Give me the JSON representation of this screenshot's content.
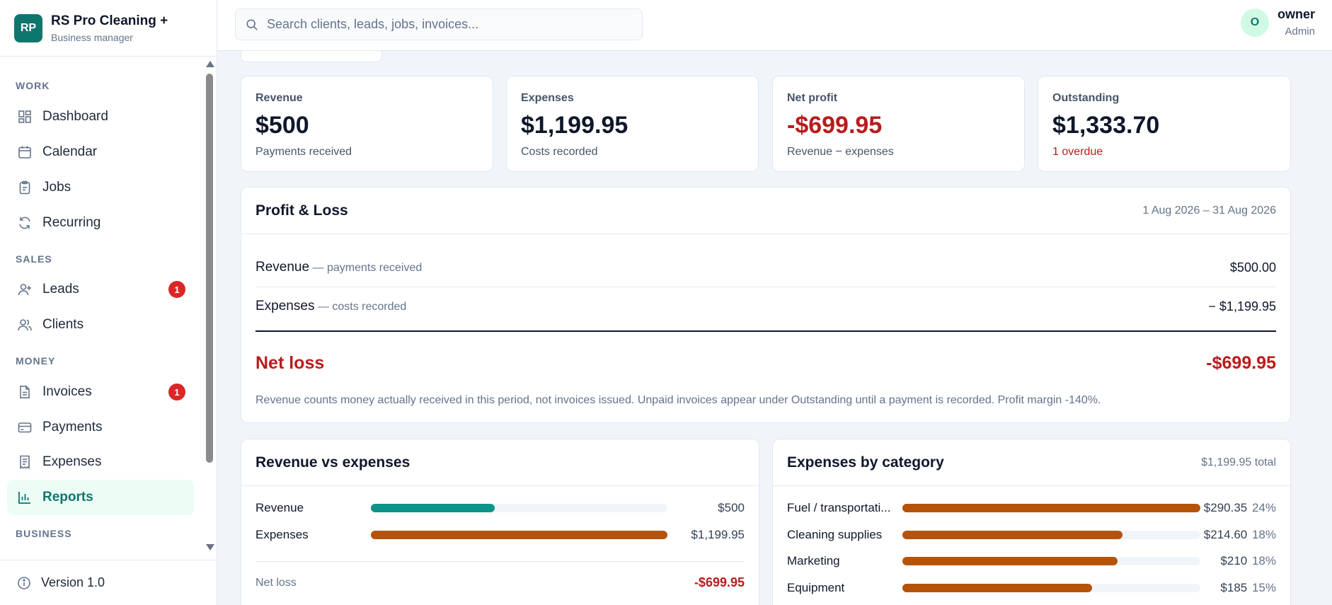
{
  "brand": {
    "logo": "RP",
    "name": "RS Pro Cleaning +",
    "subtitle": "Business manager"
  },
  "search": {
    "placeholder": "Search clients, leads, jobs, invoices..."
  },
  "user": {
    "initial": "O",
    "name": "owner",
    "role": "Admin"
  },
  "sidebar": {
    "sections": {
      "work": "WORK",
      "sales": "SALES",
      "money": "MONEY",
      "business": "BUSINESS"
    },
    "items": [
      {
        "label": "Dashboard",
        "icon": "dashboard-icon"
      },
      {
        "label": "Calendar",
        "icon": "calendar-icon"
      },
      {
        "label": "Jobs",
        "icon": "clipboard-icon"
      },
      {
        "label": "Recurring",
        "icon": "refresh-icon"
      },
      {
        "label": "Leads",
        "icon": "user-plus-icon",
        "badge": "1"
      },
      {
        "label": "Clients",
        "icon": "users-icon"
      },
      {
        "label": "Invoices",
        "icon": "document-icon",
        "badge": "1"
      },
      {
        "label": "Payments",
        "icon": "credit-card-icon"
      },
      {
        "label": "Expenses",
        "icon": "receipt-icon"
      },
      {
        "label": "Reports",
        "icon": "bar-chart-icon",
        "active": true
      }
    ],
    "version": "Version 1.0"
  },
  "stats": [
    {
      "label": "Revenue",
      "value": "$500",
      "sub": "Payments received"
    },
    {
      "label": "Expenses",
      "value": "$1,199.95",
      "sub": "Costs recorded"
    },
    {
      "label": "Net profit",
      "value": "-$699.95",
      "sub": "Revenue − expenses"
    },
    {
      "label": "Outstanding",
      "value": "$1,333.70",
      "sub": "1 overdue"
    }
  ],
  "pnl": {
    "title": "Profit & Loss",
    "period": "1 Aug 2026 – 31 Aug 2026",
    "revenue_label": "Revenue",
    "revenue_desc": "— payments received",
    "revenue_amount": "$500.00",
    "expenses_label": "Expenses",
    "expenses_desc": "— costs recorded",
    "expenses_amount": "− $1,199.95",
    "net_label": "Net loss",
    "net_amount": "-$699.95",
    "note": "Revenue counts money actually received in this period, not invoices issued. Unpaid invoices appear under Outstanding until a payment is recorded. Profit margin -140%."
  },
  "rve": {
    "title": "Revenue vs expenses",
    "rows": [
      {
        "label": "Revenue",
        "value": "$500",
        "fraction": 0.4167,
        "color": "#0d9488"
      },
      {
        "label": "Expenses",
        "value": "$1,199.95",
        "fraction": 1.0,
        "color": "#b45309"
      }
    ],
    "net_label": "Net loss",
    "net_value": "-$699.95"
  },
  "expcat": {
    "title": "Expenses by category",
    "total": "$1,199.95 total",
    "color": "#b45309",
    "rows": [
      {
        "label": "Fuel / transportati...",
        "value": "$290.35",
        "pct": "24%",
        "fraction": 1.0
      },
      {
        "label": "Cleaning supplies",
        "value": "$214.60",
        "pct": "18%",
        "fraction": 0.739
      },
      {
        "label": "Marketing",
        "value": "$210",
        "pct": "18%",
        "fraction": 0.723
      },
      {
        "label": "Equipment",
        "value": "$185",
        "pct": "15%",
        "fraction": 0.637
      }
    ]
  }
}
